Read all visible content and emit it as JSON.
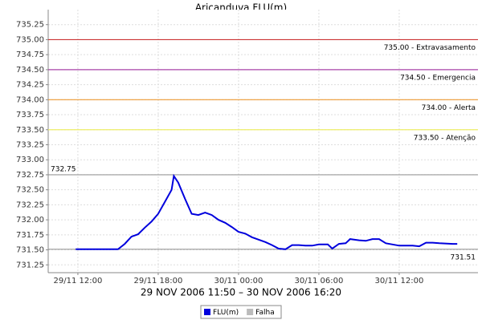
{
  "chart_data": {
    "type": "line",
    "title": "Aricanduva FLU(m)",
    "subtitle": "29 NOV 2006 11:50 – 30 NOV 2006 16:20",
    "x": [
      "29/11 11:50",
      "29/11 13:00",
      "29/11 14:00",
      "29/11 15:00",
      "29/11 15:30",
      "29/11 16:00",
      "29/11 16:30",
      "29/11 17:00",
      "29/11 17:30",
      "29/11 18:00",
      "29/11 18:30",
      "29/11 19:00",
      "29/11 19:10",
      "29/11 19:30",
      "29/11 20:00",
      "29/11 20:30",
      "29/11 21:00",
      "29/11 21:30",
      "29/11 22:00",
      "29/11 22:30",
      "29/11 23:00",
      "29/11 23:30",
      "30/11 00:00",
      "30/11 00:30",
      "30/11 01:00",
      "30/11 01:30",
      "30/11 02:00",
      "30/11 02:30",
      "30/11 03:00",
      "30/11 03:30",
      "30/11 04:00",
      "30/11 04:30",
      "30/11 05:00",
      "30/11 05:30",
      "30/11 06:00",
      "30/11 06:40",
      "30/11 07:00",
      "30/11 07:30",
      "30/11 08:00",
      "30/11 08:20",
      "30/11 09:00",
      "30/11 09:30",
      "30/11 10:00",
      "30/11 10:30",
      "30/11 11:00",
      "30/11 11:30",
      "30/11 12:00",
      "30/11 13:00",
      "30/11 13:30",
      "30/11 14:00",
      "30/11 14:30",
      "30/11 15:00",
      "30/11 16:00",
      "30/11 16:20"
    ],
    "series": [
      {
        "name": "FLU(m)",
        "color": "#0000dd",
        "values": [
          731.51,
          731.51,
          731.51,
          731.51,
          731.6,
          731.72,
          731.76,
          731.87,
          731.97,
          732.1,
          732.3,
          732.5,
          732.73,
          732.62,
          732.35,
          732.1,
          732.08,
          732.12,
          732.08,
          732.0,
          731.95,
          731.88,
          731.8,
          731.77,
          731.71,
          731.67,
          731.63,
          731.58,
          731.52,
          731.51,
          731.58,
          731.58,
          731.57,
          731.57,
          731.59,
          731.59,
          731.52,
          731.6,
          731.61,
          731.68,
          731.66,
          731.65,
          731.68,
          731.68,
          731.61,
          731.59,
          731.57,
          731.57,
          731.56,
          731.62,
          731.62,
          731.61,
          731.6,
          731.6
        ]
      },
      {
        "name": "Falha",
        "color": "#bbbbbb",
        "values": [
          null,
          null,
          null,
          null,
          null,
          null,
          null,
          null,
          null,
          null,
          null,
          null,
          null,
          null,
          null,
          null,
          null,
          null,
          null,
          null,
          null,
          null,
          null,
          null,
          null,
          null,
          null,
          null,
          null,
          null,
          null,
          null,
          null,
          null,
          null,
          null,
          null,
          null,
          null,
          null,
          null,
          null,
          null,
          null,
          null,
          null,
          null,
          null,
          null,
          null,
          null,
          null,
          null,
          null
        ]
      }
    ],
    "thresholds": [
      {
        "value": 735.0,
        "label": "735.00 - Extravasamento",
        "color": "#cc3333",
        "side": "right"
      },
      {
        "value": 734.5,
        "label": "734.50 - Emergencia",
        "color": "#aa44aa",
        "side": "right"
      },
      {
        "value": 734.0,
        "label": "734.00 - Alerta",
        "color": "#ee9933",
        "side": "right"
      },
      {
        "value": 733.5,
        "label": "733.50 - Atenção",
        "color": "#eeee66",
        "side": "right"
      },
      {
        "value": 732.75,
        "label": "732.75",
        "color": "#999999",
        "side": "left"
      },
      {
        "value": 731.51,
        "label": "731.51",
        "color": "#999999",
        "side": "right"
      }
    ],
    "xlim": [
      "29/11 09:47",
      "30/11 17:53"
    ],
    "xticks": [
      "29/11 12:00",
      "29/11 18:00",
      "30/11 00:00",
      "30/11 06:00",
      "30/11 12:00"
    ],
    "ylim": [
      731.12,
      735.5
    ],
    "yticks": [
      731.25,
      {
        "value": 731.5,
        "label": "731.50"
      },
      731.75,
      {
        "value": 732,
        "label": "732.00"
      },
      732.25,
      {
        "value": 732.5,
        "label": "732.50"
      },
      732.75,
      {
        "value": 733,
        "label": "733.00"
      },
      733.25,
      {
        "value": 733.5,
        "label": "733.50"
      },
      733.75,
      {
        "value": 734,
        "label": "734.00"
      },
      734.25,
      {
        "value": 734.5,
        "label": "734.50"
      },
      734.75,
      {
        "value": 735,
        "label": "735.00"
      },
      735.25
    ],
    "grid": true
  }
}
